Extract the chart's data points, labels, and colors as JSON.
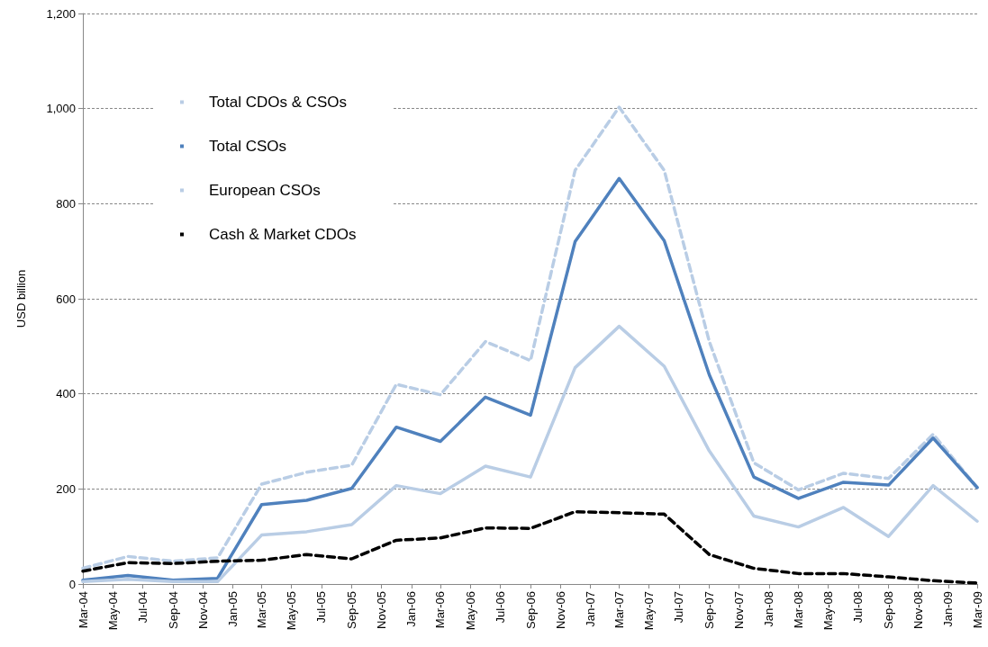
{
  "chart_data": {
    "type": "line",
    "ylabel": "USD billion",
    "x": [
      "2004-03",
      "2004-06",
      "2004-09",
      "2004-12",
      "2005-03",
      "2005-06",
      "2005-09",
      "2005-12",
      "2006-03",
      "2006-06",
      "2006-09",
      "2006-12",
      "2007-03",
      "2007-06",
      "2007-09",
      "2007-12",
      "2008-03",
      "2008-06",
      "2008-09",
      "2008-12",
      "2009-03"
    ],
    "series": [
      {
        "name": "Total CDOs & CSOs",
        "color": "#b9cde5",
        "line_style": "dashed",
        "values": [
          33,
          58,
          48,
          55,
          210,
          235,
          250,
          420,
          398,
          510,
          470,
          870,
          1003,
          870,
          510,
          255,
          198,
          233,
          222,
          315,
          203
        ]
      },
      {
        "name": "Total CSOs",
        "color": "#4f81bd",
        "line_style": "solid",
        "values": [
          8,
          18,
          8,
          12,
          167,
          176,
          201,
          330,
          300,
          393,
          355,
          720,
          853,
          722,
          440,
          225,
          180,
          214,
          208,
          307,
          203
        ]
      },
      {
        "name": "European CSOs",
        "color": "#b9cde5",
        "line_style": "solid",
        "values": [
          5,
          10,
          5,
          5,
          103,
          110,
          125,
          207,
          190,
          248,
          225,
          455,
          542,
          458,
          280,
          143,
          120,
          161,
          100,
          207,
          132
        ]
      },
      {
        "name": "Cash & Market CDOs",
        "color": "#000000",
        "line_style": "dashed",
        "values": [
          27,
          45,
          43,
          48,
          50,
          62,
          53,
          92,
          97,
          118,
          117,
          152,
          150,
          147,
          62,
          33,
          22,
          22,
          15,
          7,
          2
        ]
      }
    ],
    "xlim": [
      "2004-03",
      "2009-03"
    ],
    "xticks": [
      {
        "value": "2004-03",
        "label": "Mar-04"
      },
      {
        "value": "2004-05",
        "label": "May-04"
      },
      {
        "value": "2004-07",
        "label": "Jul-04"
      },
      {
        "value": "2004-09",
        "label": "Sep-04"
      },
      {
        "value": "2004-11",
        "label": "Nov-04"
      },
      {
        "value": "2005-01",
        "label": "Jan-05"
      },
      {
        "value": "2005-03",
        "label": "Mar-05"
      },
      {
        "value": "2005-05",
        "label": "May-05"
      },
      {
        "value": "2005-07",
        "label": "Jul-05"
      },
      {
        "value": "2005-09",
        "label": "Sep-05"
      },
      {
        "value": "2005-11",
        "label": "Nov-05"
      },
      {
        "value": "2006-01",
        "label": "Jan-06"
      },
      {
        "value": "2006-03",
        "label": "Mar-06"
      },
      {
        "value": "2006-05",
        "label": "May-06"
      },
      {
        "value": "2006-07",
        "label": "Jul-06"
      },
      {
        "value": "2006-09",
        "label": "Sep-06"
      },
      {
        "value": "2006-11",
        "label": "Nov-06"
      },
      {
        "value": "2007-01",
        "label": "Jan-07"
      },
      {
        "value": "2007-03",
        "label": "Mar-07"
      },
      {
        "value": "2007-05",
        "label": "May-07"
      },
      {
        "value": "2007-07",
        "label": "Jul-07"
      },
      {
        "value": "2007-09",
        "label": "Sep-07"
      },
      {
        "value": "2007-11",
        "label": "Nov-07"
      },
      {
        "value": "2008-01",
        "label": "Jan-08"
      },
      {
        "value": "2008-03",
        "label": "Mar-08"
      },
      {
        "value": "2008-05",
        "label": "May-08"
      },
      {
        "value": "2008-07",
        "label": "Jul-08"
      },
      {
        "value": "2008-09",
        "label": "Sep-08"
      },
      {
        "value": "2008-11",
        "label": "Nov-08"
      },
      {
        "value": "2009-01",
        "label": "Jan-09"
      },
      {
        "value": "2009-03",
        "label": "Mar-09"
      }
    ],
    "ylim": [
      0,
      1200
    ],
    "yticks": [
      {
        "value": 0,
        "label": "0"
      },
      {
        "value": 200,
        "label": "200"
      },
      {
        "value": 400,
        "label": "400"
      },
      {
        "value": 600,
        "label": "600"
      },
      {
        "value": 800,
        "label": "800"
      },
      {
        "value": 1000,
        "label": "1,000"
      },
      {
        "value": 1200,
        "label": "1,200"
      }
    ],
    "grid": "y",
    "legend": "top left",
    "marker": "none"
  }
}
